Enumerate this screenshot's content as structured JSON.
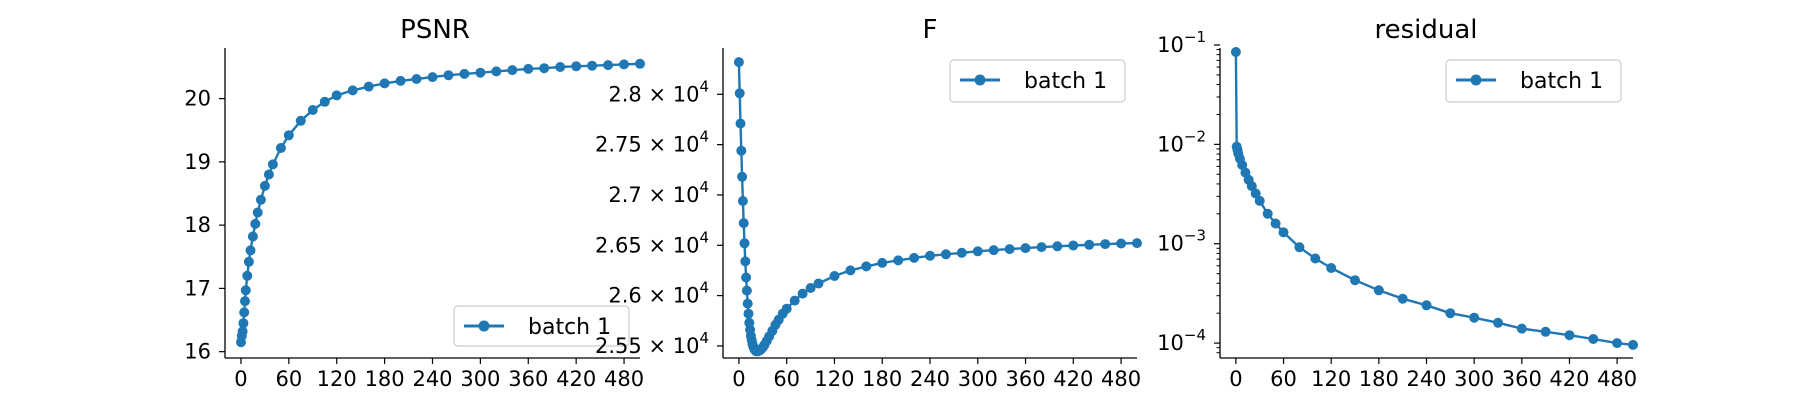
{
  "colors": {
    "series": "#1f77b4",
    "axis": "#000000",
    "legend_border": "#cccccc"
  },
  "chart_data": [
    {
      "type": "line",
      "title": "PSNR",
      "xlabel": "",
      "ylabel": "",
      "xlim": [
        -20,
        500
      ],
      "ylim": [
        15.9,
        20.8
      ],
      "y_scale": "linear",
      "x_ticks": [
        0,
        60,
        120,
        180,
        240,
        300,
        360,
        420,
        480
      ],
      "x_tick_labels": [
        "0",
        "60",
        "120",
        "180",
        "240",
        "300",
        "360",
        "420",
        "480"
      ],
      "y_ticks": [
        16,
        17,
        18,
        19,
        20
      ],
      "y_tick_labels": [
        "16",
        "17",
        "18",
        "19",
        "20"
      ],
      "legend_position": "lower-right",
      "grid": false,
      "series": [
        {
          "name": "batch 1",
          "marker": "circle",
          "x": [
            0,
            1,
            2,
            3,
            4,
            5,
            6,
            8,
            10,
            12,
            15,
            18,
            21,
            25,
            30,
            35,
            40,
            50,
            60,
            75,
            90,
            105,
            120,
            140,
            160,
            180,
            200,
            220,
            240,
            260,
            280,
            300,
            320,
            340,
            360,
            380,
            400,
            420,
            440,
            460,
            480,
            500
          ],
          "y": [
            16.15,
            16.25,
            16.32,
            16.45,
            16.62,
            16.8,
            16.97,
            17.2,
            17.42,
            17.6,
            17.82,
            18.02,
            18.2,
            18.4,
            18.62,
            18.8,
            18.96,
            19.22,
            19.42,
            19.65,
            19.82,
            19.95,
            20.05,
            20.13,
            20.19,
            20.24,
            20.28,
            20.31,
            20.34,
            20.37,
            20.39,
            20.41,
            20.43,
            20.45,
            20.47,
            20.48,
            20.5,
            20.51,
            20.52,
            20.53,
            20.54,
            20.55
          ]
        }
      ]
    },
    {
      "type": "line",
      "title": "F",
      "xlabel": "",
      "ylabel": "",
      "xlim": [
        -20,
        500
      ],
      "ylim": [
        25380,
        28460
      ],
      "y_scale": "linear",
      "x_ticks": [
        0,
        60,
        120,
        180,
        240,
        300,
        360,
        420,
        480
      ],
      "x_tick_labels": [
        "0",
        "60",
        "120",
        "180",
        "240",
        "300",
        "360",
        "420",
        "480"
      ],
      "y_ticks": [
        25500,
        26000,
        26500,
        27000,
        27500,
        28000
      ],
      "y_tick_mantissas": [
        "2.55",
        "2.6",
        "2.65",
        "2.7",
        "2.75",
        "2.8"
      ],
      "y_tick_base": "10",
      "y_tick_exponent": "4",
      "legend_position": "upper-right",
      "grid": false,
      "series": [
        {
          "name": "batch 1",
          "marker": "circle",
          "x": [
            0,
            1,
            2,
            3,
            4,
            5,
            6,
            7,
            8,
            9,
            10,
            11,
            12,
            13,
            14,
            15,
            16,
            17,
            18,
            19,
            20,
            21,
            22,
            24,
            26,
            28,
            30,
            32,
            35,
            38,
            42,
            46,
            50,
            55,
            60,
            70,
            80,
            90,
            100,
            120,
            140,
            160,
            180,
            200,
            220,
            240,
            260,
            280,
            300,
            320,
            340,
            360,
            380,
            400,
            420,
            440,
            460,
            480,
            500
          ],
          "y": [
            28320,
            28010,
            27710,
            27440,
            27180,
            26940,
            26720,
            26520,
            26340,
            26180,
            26050,
            25920,
            25820,
            25730,
            25660,
            25600,
            25560,
            25520,
            25495,
            25475,
            25460,
            25452,
            25448,
            25448,
            25455,
            25468,
            25485,
            25510,
            25550,
            25595,
            25650,
            25710,
            25760,
            25820,
            25870,
            25950,
            26020,
            26075,
            26120,
            26195,
            26250,
            26290,
            26325,
            26350,
            26375,
            26395,
            26410,
            26425,
            26440,
            26452,
            26462,
            26472,
            26482,
            26490,
            26498,
            26505,
            26512,
            26518,
            26522
          ]
        }
      ]
    },
    {
      "type": "line",
      "title": "residual",
      "xlabel": "",
      "ylabel": "",
      "xlim": [
        -20,
        500
      ],
      "ylim_log10": [
        -4.15,
        -1.03
      ],
      "y_scale": "log",
      "x_ticks": [
        0,
        60,
        120,
        180,
        240,
        300,
        360,
        420,
        480
      ],
      "x_tick_labels": [
        "0",
        "60",
        "120",
        "180",
        "240",
        "300",
        "360",
        "420",
        "480"
      ],
      "y_tick_exponents": [
        -1,
        -2,
        -3,
        -4
      ],
      "y_tick_base": "10",
      "legend_position": "upper-right",
      "grid": false,
      "series": [
        {
          "name": "batch 1",
          "marker": "circle",
          "x": [
            0,
            1,
            2,
            3,
            5,
            8,
            12,
            16,
            20,
            25,
            30,
            40,
            50,
            60,
            80,
            100,
            120,
            150,
            180,
            210,
            240,
            270,
            300,
            330,
            360,
            390,
            420,
            450,
            480,
            500
          ],
          "y": [
            0.085,
            0.0095,
            0.0088,
            0.0081,
            0.0072,
            0.0062,
            0.0052,
            0.0044,
            0.0038,
            0.0032,
            0.0027,
            0.002,
            0.0016,
            0.0013,
            0.00092,
            0.00071,
            0.00057,
            0.00043,
            0.00034,
            0.00028,
            0.00024,
            0.0002,
            0.00018,
            0.00016,
            0.00014,
            0.00013,
            0.00012,
            0.00011,
            0.0001,
            9.6e-05
          ]
        }
      ]
    }
  ]
}
